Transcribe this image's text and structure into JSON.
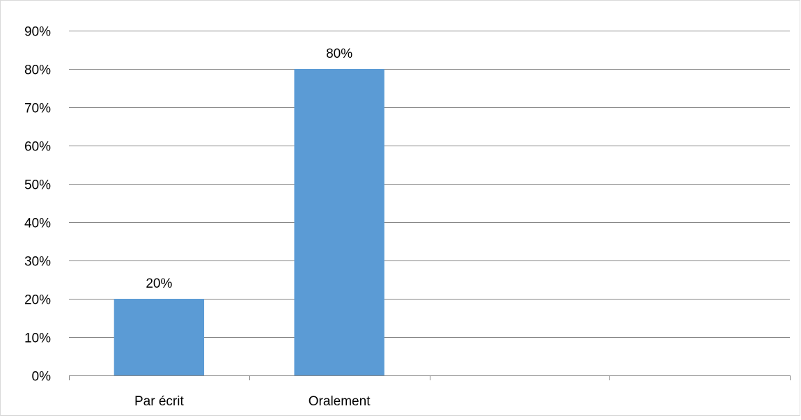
{
  "chart_data": {
    "type": "bar",
    "categories": [
      "Par écrit",
      "Oralement",
      "",
      ""
    ],
    "values": [
      0.2,
      0.8,
      null,
      null
    ],
    "data_labels": [
      "20%",
      "80%",
      "",
      ""
    ],
    "ylim": [
      0,
      0.9
    ],
    "y_ticks": [
      0,
      0.1,
      0.2,
      0.3,
      0.4,
      0.5,
      0.6,
      0.7,
      0.8,
      0.9
    ],
    "y_tick_labels": [
      "0%",
      "10%",
      "20%",
      "30%",
      "40%",
      "50%",
      "60%",
      "70%",
      "80%",
      "90%"
    ],
    "grid": true,
    "legend": "none",
    "title": "",
    "xlabel": "",
    "ylabel": ""
  },
  "colors": {
    "bar": "#5b9bd5",
    "gridline": "#868686",
    "axis": "#868686",
    "frame": "#d9d9d9"
  }
}
